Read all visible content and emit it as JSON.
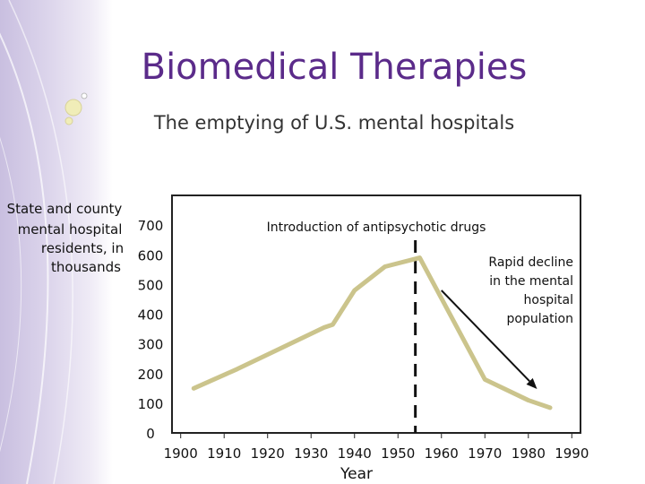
{
  "slide": {
    "title": "Biomedical Therapies",
    "subtitle": "The emptying of U.S. mental hospitals"
  },
  "colors": {
    "title": "#5b2b8a",
    "series_line": "#cbc48c",
    "band": "#d4cbe6"
  },
  "chart_data": {
    "type": "line",
    "ylabel_lines": [
      "State and county",
      "mental hospital",
      "residents, in",
      "thousands"
    ],
    "xlabel": "Year",
    "y_ticks": [
      0,
      100,
      200,
      300,
      400,
      500,
      600,
      700
    ],
    "x_ticks": [
      1900,
      1910,
      1920,
      1930,
      1940,
      1950,
      1960,
      1970,
      1980,
      1990
    ],
    "ylim": [
      0,
      800
    ],
    "xlim": [
      1898,
      1992
    ],
    "series": [
      {
        "x": [
          1903,
          1913,
          1923,
          1933,
          1935,
          1940,
          1947,
          1955,
          1970,
          1980,
          1985
        ],
        "values": [
          150,
          215,
          285,
          355,
          365,
          480,
          560,
          590,
          180,
          110,
          85
        ]
      }
    ],
    "annotations": {
      "antipsychotic_label": "Introduction of antipsychotic drugs",
      "antipsychotic_year": 1954,
      "decline_lines": [
        "Rapid decline",
        "in the mental",
        "hospital",
        "population"
      ],
      "arrow_from": [
        1960,
        480
      ],
      "arrow_to": [
        1982,
        148
      ]
    },
    "grid": false
  }
}
